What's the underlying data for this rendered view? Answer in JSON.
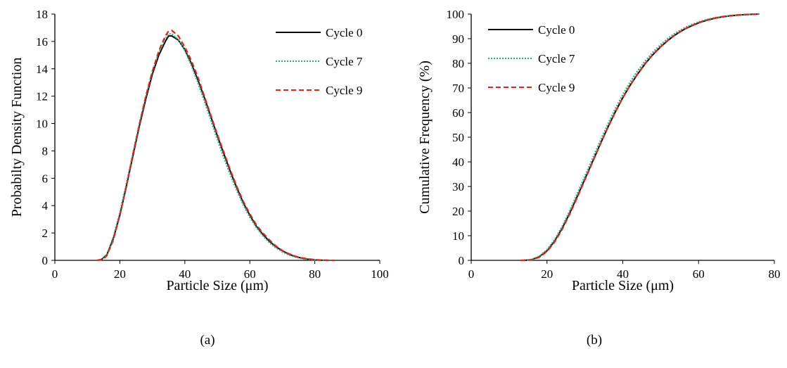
{
  "chart_data": [
    {
      "type": "line",
      "xlabel": "Particle Size (μm)",
      "ylabel": "Probabilty Density Function",
      "xlim": [
        0,
        100
      ],
      "ylim": [
        0,
        18
      ],
      "xticks": [
        0,
        20,
        40,
        60,
        80,
        100
      ],
      "yticks": [
        0,
        2,
        4,
        6,
        8,
        10,
        12,
        14,
        16,
        18
      ],
      "grid": false,
      "legend_position": "top-right",
      "caption": "(a)",
      "series": [
        {
          "name": "Cycle 0",
          "color": "#000000",
          "dash": "solid",
          "points": [
            [
              14,
              0
            ],
            [
              16,
              0.4
            ],
            [
              18,
              1.6
            ],
            [
              20,
              3.3
            ],
            [
              22,
              5.4
            ],
            [
              24,
              7.6
            ],
            [
              26,
              9.8
            ],
            [
              28,
              11.8
            ],
            [
              30,
              13.6
            ],
            [
              32,
              15.0
            ],
            [
              34,
              16.0
            ],
            [
              35,
              16.4
            ],
            [
              36,
              16.4
            ],
            [
              38,
              16.1
            ],
            [
              40,
              15.4
            ],
            [
              42,
              14.4
            ],
            [
              44,
              13.2
            ],
            [
              46,
              11.9
            ],
            [
              48,
              10.5
            ],
            [
              50,
              9.1
            ],
            [
              52,
              7.8
            ],
            [
              54,
              6.5
            ],
            [
              56,
              5.3
            ],
            [
              58,
              4.2
            ],
            [
              60,
              3.3
            ],
            [
              62,
              2.5
            ],
            [
              64,
              1.9
            ],
            [
              66,
              1.4
            ],
            [
              68,
              1.0
            ],
            [
              70,
              0.7
            ],
            [
              72,
              0.45
            ],
            [
              74,
              0.28
            ],
            [
              76,
              0.16
            ],
            [
              78,
              0.08
            ],
            [
              80,
              0.03
            ],
            [
              82,
              0.01
            ],
            [
              84,
              0
            ]
          ]
        },
        {
          "name": "Cycle 7",
          "color": "#20B28A",
          "dash": "dotted",
          "points": [
            [
              14,
              0
            ],
            [
              16,
              0.45
            ],
            [
              18,
              1.7
            ],
            [
              20,
              3.5
            ],
            [
              22,
              5.6
            ],
            [
              24,
              7.8
            ],
            [
              26,
              10.0
            ],
            [
              28,
              12.0
            ],
            [
              30,
              13.8
            ],
            [
              32,
              15.2
            ],
            [
              34,
              16.2
            ],
            [
              35,
              16.55
            ],
            [
              36,
              16.55
            ],
            [
              38,
              16.15
            ],
            [
              40,
              15.35
            ],
            [
              42,
              14.25
            ],
            [
              44,
              13.0
            ],
            [
              46,
              11.65
            ],
            [
              48,
              10.25
            ],
            [
              50,
              8.85
            ],
            [
              52,
              7.5
            ],
            [
              54,
              6.25
            ],
            [
              56,
              5.1
            ],
            [
              58,
              4.05
            ],
            [
              60,
              3.15
            ],
            [
              62,
              2.4
            ],
            [
              64,
              1.8
            ],
            [
              66,
              1.3
            ],
            [
              68,
              0.92
            ],
            [
              70,
              0.63
            ],
            [
              72,
              0.4
            ],
            [
              74,
              0.24
            ],
            [
              76,
              0.13
            ],
            [
              78,
              0.06
            ],
            [
              80,
              0.02
            ],
            [
              82,
              0.005
            ],
            [
              84,
              0
            ]
          ]
        },
        {
          "name": "Cycle 9",
          "color": "#E8201A",
          "dash": "dashed",
          "points": [
            [
              13,
              0
            ],
            [
              15,
              0.1
            ],
            [
              16,
              0.35
            ],
            [
              18,
              1.5
            ],
            [
              20,
              3.3
            ],
            [
              22,
              5.4
            ],
            [
              24,
              7.7
            ],
            [
              26,
              9.9
            ],
            [
              28,
              12.0
            ],
            [
              30,
              13.8
            ],
            [
              32,
              15.3
            ],
            [
              34,
              16.4
            ],
            [
              35,
              16.75
            ],
            [
              36,
              16.8
            ],
            [
              38,
              16.4
            ],
            [
              40,
              15.6
            ],
            [
              42,
              14.6
            ],
            [
              44,
              13.4
            ],
            [
              46,
              12.0
            ],
            [
              48,
              10.6
            ],
            [
              50,
              9.2
            ],
            [
              52,
              7.9
            ],
            [
              54,
              6.6
            ],
            [
              56,
              5.4
            ],
            [
              58,
              4.3
            ],
            [
              60,
              3.4
            ],
            [
              62,
              2.6
            ],
            [
              64,
              2.0
            ],
            [
              66,
              1.5
            ],
            [
              68,
              1.05
            ],
            [
              70,
              0.72
            ],
            [
              72,
              0.48
            ],
            [
              74,
              0.3
            ],
            [
              76,
              0.18
            ],
            [
              78,
              0.1
            ],
            [
              80,
              0.05
            ],
            [
              82,
              0.02
            ],
            [
              84,
              0.01
            ],
            [
              86,
              0
            ]
          ]
        }
      ]
    },
    {
      "type": "line",
      "xlabel": "Particle Size (μm)",
      "ylabel": "Cumulative Frequency  (%)",
      "xlim": [
        0,
        80
      ],
      "ylim": [
        0,
        100
      ],
      "xticks": [
        0,
        20,
        40,
        60,
        80
      ],
      "yticks": [
        0,
        10,
        20,
        30,
        40,
        50,
        60,
        70,
        80,
        90,
        100
      ],
      "grid": false,
      "legend_position": "top-left",
      "caption": "(b)",
      "series": [
        {
          "name": "Cycle 0",
          "color": "#000000",
          "dash": "solid",
          "points": [
            [
              14,
              0
            ],
            [
              16,
              0.3
            ],
            [
              18,
              1.5
            ],
            [
              20,
              3.9
            ],
            [
              22,
              7.8
            ],
            [
              24,
              13.0
            ],
            [
              26,
              19.2
            ],
            [
              28,
              26.0
            ],
            [
              30,
              33.0
            ],
            [
              32,
              40.0
            ],
            [
              34,
              47.0
            ],
            [
              36,
              53.8
            ],
            [
              38,
              60.2
            ],
            [
              40,
              66.0
            ],
            [
              42,
              71.2
            ],
            [
              44,
              75.8
            ],
            [
              46,
              80.0
            ],
            [
              48,
              83.6
            ],
            [
              50,
              86.7
            ],
            [
              52,
              89.4
            ],
            [
              54,
              91.7
            ],
            [
              56,
              93.6
            ],
            [
              58,
              95.1
            ],
            [
              60,
              96.4
            ],
            [
              62,
              97.4
            ],
            [
              64,
              98.2
            ],
            [
              66,
              98.8
            ],
            [
              68,
              99.2
            ],
            [
              70,
              99.5
            ],
            [
              72,
              99.75
            ],
            [
              74,
              99.9
            ],
            [
              76,
              100
            ]
          ]
        },
        {
          "name": "Cycle 7",
          "color": "#20B28A",
          "dash": "dotted",
          "points": [
            [
              14,
              0
            ],
            [
              16,
              0.4
            ],
            [
              18,
              1.7
            ],
            [
              20,
              4.3
            ],
            [
              22,
              8.4
            ],
            [
              24,
              13.8
            ],
            [
              26,
              20.2
            ],
            [
              28,
              27.1
            ],
            [
              30,
              34.2
            ],
            [
              32,
              41.3
            ],
            [
              34,
              48.3
            ],
            [
              36,
              55.1
            ],
            [
              38,
              61.5
            ],
            [
              40,
              67.3
            ],
            [
              42,
              72.5
            ],
            [
              44,
              77.1
            ],
            [
              46,
              81.1
            ],
            [
              48,
              84.6
            ],
            [
              50,
              87.6
            ],
            [
              52,
              90.2
            ],
            [
              54,
              92.4
            ],
            [
              56,
              94.2
            ],
            [
              58,
              95.6
            ],
            [
              60,
              96.8
            ],
            [
              62,
              97.7
            ],
            [
              64,
              98.4
            ],
            [
              66,
              98.9
            ],
            [
              68,
              99.3
            ],
            [
              70,
              99.6
            ],
            [
              72,
              99.8
            ],
            [
              74,
              99.95
            ],
            [
              76,
              100
            ]
          ]
        },
        {
          "name": "Cycle 9",
          "color": "#E8201A",
          "dash": "dashed",
          "points": [
            [
              13,
              0
            ],
            [
              15,
              0.1
            ],
            [
              16,
              0.2
            ],
            [
              18,
              1.3
            ],
            [
              20,
              3.6
            ],
            [
              22,
              7.4
            ],
            [
              24,
              12.6
            ],
            [
              26,
              18.8
            ],
            [
              28,
              25.6
            ],
            [
              30,
              32.7
            ],
            [
              32,
              39.8
            ],
            [
              34,
              46.9
            ],
            [
              36,
              53.7
            ],
            [
              38,
              60.1
            ],
            [
              40,
              66.0
            ],
            [
              42,
              71.3
            ],
            [
              44,
              75.9
            ],
            [
              46,
              80.1
            ],
            [
              48,
              83.7
            ],
            [
              50,
              86.8
            ],
            [
              52,
              89.5
            ],
            [
              54,
              91.8
            ],
            [
              56,
              93.7
            ],
            [
              58,
              95.2
            ],
            [
              60,
              96.5
            ],
            [
              62,
              97.5
            ],
            [
              64,
              98.3
            ],
            [
              66,
              98.9
            ],
            [
              68,
              99.3
            ],
            [
              70,
              99.6
            ],
            [
              72,
              99.8
            ],
            [
              74,
              99.9
            ],
            [
              76,
              100
            ]
          ]
        }
      ]
    }
  ]
}
